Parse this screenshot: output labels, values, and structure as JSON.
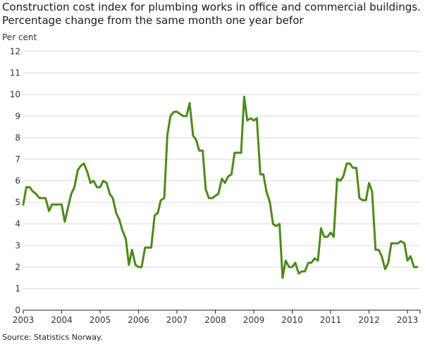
{
  "title_line1": "Construction cost index for plumbing works in office and commercial buildings.",
  "title_line2": "Percentage change from the same month one year befor",
  "source": "Source: Statistics Norway.",
  "chart_data": {
    "type": "line",
    "ylabel": "Per cent",
    "ylim": [
      0,
      12
    ],
    "xlim": [
      2003,
      2013.33
    ],
    "yticks": [
      "0",
      "1",
      "2",
      "3",
      "4",
      "5",
      "6",
      "7",
      "8",
      "9",
      "10",
      "11",
      "12"
    ],
    "xticks": [
      "2003",
      "2004",
      "2005",
      "2006",
      "2007",
      "2008",
      "2009",
      "2010",
      "2011",
      "2012",
      "2013"
    ],
    "grid": "horizontal",
    "color": "#4d8a1a",
    "series": [
      {
        "x": [
          2003.0,
          2003.08,
          2003.17,
          2003.25,
          2003.33,
          2003.42,
          2003.5,
          2003.58,
          2003.67,
          2003.75,
          2003.83,
          2003.92,
          2004.0,
          2004.08,
          2004.17,
          2004.25,
          2004.33,
          2004.42,
          2004.5,
          2004.58,
          2004.67,
          2004.75,
          2004.83,
          2004.92,
          2005.0,
          2005.08,
          2005.17,
          2005.25,
          2005.33,
          2005.42,
          2005.5,
          2005.58,
          2005.67,
          2005.75,
          2005.83,
          2005.92,
          2006.0,
          2006.08,
          2006.17,
          2006.25,
          2006.33,
          2006.42,
          2006.5,
          2006.58,
          2006.67,
          2006.75,
          2006.83,
          2006.92,
          2007.0,
          2007.08,
          2007.17,
          2007.25,
          2007.33,
          2007.42,
          2007.5,
          2007.58,
          2007.67,
          2007.75,
          2007.83,
          2007.92,
          2008.0,
          2008.08,
          2008.17,
          2008.25,
          2008.33,
          2008.42,
          2008.5,
          2008.58,
          2008.67,
          2008.75,
          2008.83,
          2008.92,
          2009.0,
          2009.08,
          2009.17,
          2009.25,
          2009.33,
          2009.42,
          2009.5,
          2009.58,
          2009.67,
          2009.75,
          2009.83,
          2009.92,
          2010.0,
          2010.08,
          2010.17,
          2010.25,
          2010.33,
          2010.42,
          2010.5,
          2010.58,
          2010.67,
          2010.75,
          2010.83,
          2010.92,
          2011.0,
          2011.08,
          2011.17,
          2011.25,
          2011.33,
          2011.42,
          2011.5,
          2011.58,
          2011.67,
          2011.75,
          2011.83,
          2011.92,
          2012.0,
          2012.08,
          2012.17,
          2012.25,
          2012.33,
          2012.42,
          2012.5,
          2012.58,
          2012.67,
          2012.75,
          2012.83,
          2012.92,
          2013.0,
          2013.08,
          2013.17,
          2013.25
        ],
        "y": [
          4.9,
          5.7,
          5.7,
          5.5,
          5.4,
          5.2,
          5.2,
          5.2,
          4.6,
          4.9,
          4.9,
          4.9,
          4.9,
          4.1,
          4.8,
          5.4,
          5.7,
          6.5,
          6.7,
          6.8,
          6.4,
          5.9,
          6.0,
          5.7,
          5.7,
          6.0,
          5.9,
          5.4,
          5.2,
          4.5,
          4.2,
          3.7,
          3.3,
          2.1,
          2.8,
          2.1,
          2.0,
          2.0,
          2.9,
          2.9,
          2.9,
          4.4,
          4.5,
          5.1,
          5.2,
          8.1,
          9.0,
          9.2,
          9.2,
          9.1,
          9.0,
          9.0,
          9.6,
          8.1,
          7.9,
          7.4,
          7.4,
          5.6,
          5.2,
          5.2,
          5.3,
          5.4,
          6.1,
          5.9,
          6.2,
          6.3,
          7.3,
          7.3,
          7.3,
          9.9,
          8.8,
          8.9,
          8.8,
          8.9,
          6.3,
          6.3,
          5.5,
          5.0,
          4.0,
          3.9,
          4.0,
          1.5,
          2.3,
          2.0,
          2.0,
          2.2,
          1.7,
          1.8,
          1.8,
          2.2,
          2.2,
          2.4,
          2.3,
          3.8,
          3.4,
          3.4,
          3.6,
          3.4,
          6.1,
          6.0,
          6.2,
          6.8,
          6.8,
          6.6,
          6.6,
          5.2,
          5.1,
          5.1,
          5.9,
          5.5,
          2.8,
          2.8,
          2.5,
          1.9,
          2.2,
          3.1,
          3.1,
          3.1,
          3.2,
          3.1,
          2.3,
          2.5,
          2.0,
          2.0
        ]
      }
    ]
  }
}
